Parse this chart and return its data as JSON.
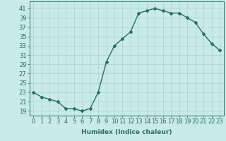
{
  "x": [
    0,
    1,
    2,
    3,
    4,
    5,
    6,
    7,
    8,
    9,
    10,
    11,
    12,
    13,
    14,
    15,
    16,
    17,
    18,
    19,
    20,
    21,
    22,
    23
  ],
  "y": [
    23,
    22,
    21.5,
    21,
    19.5,
    19.5,
    19,
    19.5,
    23,
    29.5,
    33,
    34.5,
    36,
    40,
    40.5,
    41,
    40.5,
    40,
    40,
    39,
    38,
    35.5,
    33.5,
    32
  ],
  "line_color": "#2d6e5e",
  "marker": "D",
  "marker_size": 2.0,
  "linewidth": 1.0,
  "bg_color": "#c8eae8",
  "grid_color": "#aad4d0",
  "xlabel": "Humidex (Indice chaleur)",
  "ylabel_ticks": [
    19,
    21,
    23,
    25,
    27,
    29,
    31,
    33,
    35,
    37,
    39,
    41
  ],
  "xlim": [
    -0.5,
    23.5
  ],
  "ylim": [
    18.0,
    42.5
  ],
  "xlabel_fontsize": 6.5,
  "tick_fontsize": 6.0
}
